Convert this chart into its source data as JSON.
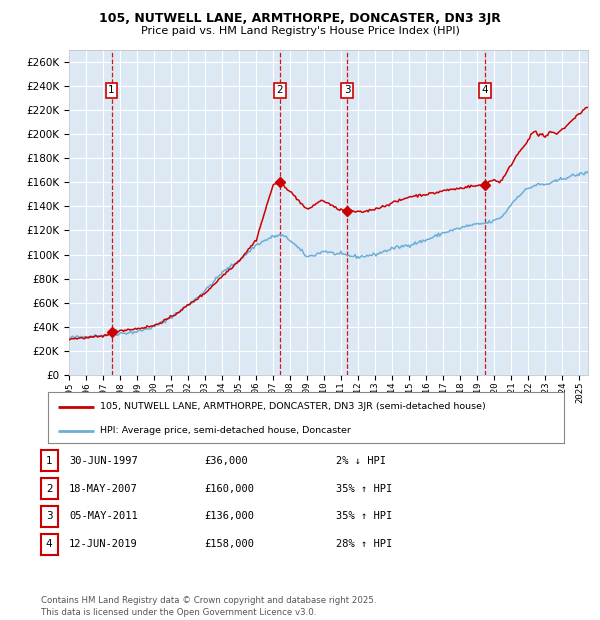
{
  "title1": "105, NUTWELL LANE, ARMTHORPE, DONCASTER, DN3 3JR",
  "title2": "Price paid vs. HM Land Registry's House Price Index (HPI)",
  "legend_line1": "105, NUTWELL LANE, ARMTHORPE, DONCASTER, DN3 3JR (semi-detached house)",
  "legend_line2": "HPI: Average price, semi-detached house, Doncaster",
  "transactions": [
    {
      "num": 1,
      "date_label": "30-JUN-1997",
      "price": 36000,
      "price_str": "£36,000",
      "pct": "2%",
      "dir": "↓",
      "year": 1997.5
    },
    {
      "num": 2,
      "date_label": "18-MAY-2007",
      "price": 160000,
      "price_str": "£160,000",
      "pct": "35%",
      "dir": "↑",
      "year": 2007.38
    },
    {
      "num": 3,
      "date_label": "05-MAY-2011",
      "price": 136000,
      "price_str": "£136,000",
      "pct": "35%",
      "dir": "↑",
      "year": 2011.35
    },
    {
      "num": 4,
      "date_label": "12-JUN-2019",
      "price": 158000,
      "price_str": "£158,000",
      "pct": "28%",
      "dir": "↑",
      "year": 2019.45
    }
  ],
  "hpi_color": "#6baed6",
  "price_color": "#cc0000",
  "dashed_color": "#cc0000",
  "plot_bg": "#dce9f5",
  "ylim": [
    0,
    270000
  ],
  "xlim_start": 1995.0,
  "xlim_end": 2025.5,
  "footer": "Contains HM Land Registry data © Crown copyright and database right 2025.\nThis data is licensed under the Open Government Licence v3.0."
}
